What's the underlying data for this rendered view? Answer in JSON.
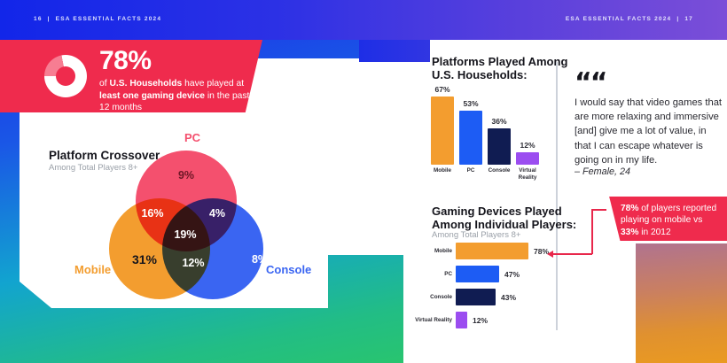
{
  "header": {
    "left_page": "16",
    "right_page": "17",
    "separator": "|",
    "title": "ESA ESSENTIAL FACTS 2024"
  },
  "banner": {
    "stat": "78%",
    "seg1": "of ",
    "bold1": "U.S. Households",
    "seg2": " have played at ",
    "bold2": "least one gaming device",
    "seg3": " in the past 12 months"
  },
  "quote": {
    "mark": "“",
    "text": "I would say that video games that are more relaxing and immersive [and] give me a lot of value, in that I can escape whatever is going on in my life.",
    "attribution": "– Female, 24"
  },
  "callout": {
    "bold1": "78%",
    "seg1": " of players reported playing on mobile vs ",
    "bold2": "33%",
    "seg2": " in 2012"
  },
  "colors": {
    "banner_red": "#ef2b4d",
    "callout_red": "#ef2b4d",
    "connector_red": "#e8274b",
    "bg_blue": "#1c2fe9",
    "bg_green": "#2ecb5c",
    "bg_purple": "#7b4ed8",
    "bg_orange": "#ea9a21",
    "venn_pc": "#f4506e",
    "venn_mobile": "#f39d2f",
    "venn_console": "#3a65f2"
  },
  "chart_data": [
    {
      "type": "venn",
      "title": "Platform Crossover",
      "subtitle": "Among Total Players 8+",
      "sets": [
        "PC",
        "Mobile",
        "Console"
      ],
      "unit": "%",
      "values": {
        "PC_only": 9,
        "Mobile_only": 31,
        "Console_only": 8,
        "PC_Mobile": 16,
        "PC_Console": 4,
        "Mobile_Console": 12,
        "PC_Mobile_Console": 19
      },
      "colors": {
        "PC": "#f4506e",
        "Mobile": "#f39d2f",
        "Console": "#3a65f2"
      }
    },
    {
      "type": "bar",
      "orientation": "vertical",
      "title": "Platforms Played Among U.S. Households:",
      "title_lines": [
        "Platforms Played Among",
        "U.S. Households:"
      ],
      "categories": [
        "Mobile",
        "PC",
        "Console",
        "Virtual Reality"
      ],
      "values": [
        67,
        53,
        36,
        12
      ],
      "unit": "%",
      "ylim": [
        0,
        100
      ],
      "colors": [
        "#f39d2f",
        "#1d5cf4",
        "#101c52",
        "#9b4df0"
      ]
    },
    {
      "type": "bar",
      "orientation": "horizontal",
      "title": "Gaming Devices Played Among Individual Players:",
      "title_lines": [
        "Gaming Devices Played",
        "Among Individual Players:"
      ],
      "subtitle": "Among Total Players 8+",
      "categories": [
        "Mobile",
        "PC",
        "Console",
        "Virtual Reality"
      ],
      "values": [
        78,
        47,
        43,
        12
      ],
      "unit": "%",
      "xlim": [
        0,
        100
      ],
      "colors": [
        "#f39d2f",
        "#1d5cf4",
        "#101c52",
        "#9b4df0"
      ]
    }
  ]
}
